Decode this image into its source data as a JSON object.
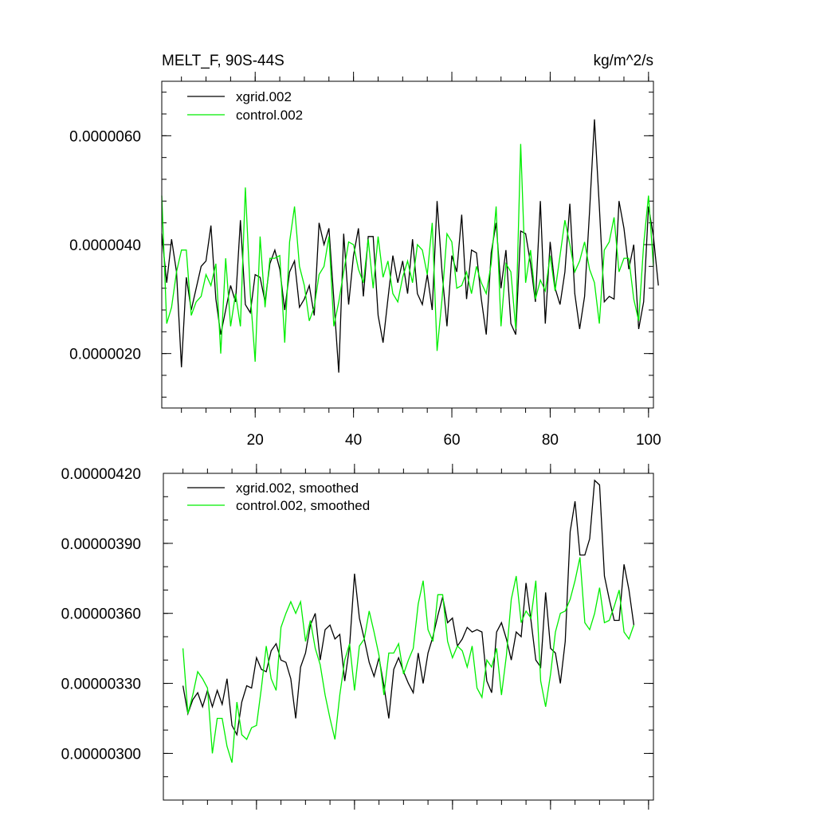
{
  "chart_data": [
    {
      "type": "line",
      "title": "MELT_F, 90S-44S",
      "units": "kg/m^2/s",
      "xlim": [
        1,
        101
      ],
      "ylim": [
        1e-06,
        7e-06
      ],
      "xticks": [
        20,
        40,
        60,
        80,
        100
      ],
      "yticks": [
        2e-06,
        4e-06,
        6e-06
      ],
      "xtick_labels": [
        "20",
        "40",
        "60",
        "80",
        "100"
      ],
      "ytick_labels": [
        "0.0000020",
        "0.0000040",
        "0.0000060"
      ],
      "legend_position": "top-left",
      "x_start": 1,
      "series": [
        {
          "name": "xgrid.002",
          "color": "#000000",
          "values": [
            4.2e-06,
            3.3e-06,
            4.1e-06,
            3.5e-06,
            1.75e-06,
            3.4e-06,
            2.8e-06,
            3.2e-06,
            3.6e-06,
            3.7e-06,
            4.35e-06,
            3e-06,
            2.35e-06,
            2.8e-06,
            3.25e-06,
            2.95e-06,
            4.45e-06,
            2.9e-06,
            2.75e-06,
            3.45e-06,
            3.4e-06,
            2.95e-06,
            3.65e-06,
            3.9e-06,
            3.55e-06,
            2.8e-06,
            3.5e-06,
            3.7e-06,
            2.85e-06,
            3e-06,
            3.25e-06,
            2.7e-06,
            4.4e-06,
            4e-06,
            4.3e-06,
            3e-06,
            1.65e-06,
            4.2e-06,
            2.9e-06,
            3.8e-06,
            4.3e-06,
            3.05e-06,
            4.15e-06,
            4.15e-06,
            2.7e-06,
            2.2e-06,
            3e-06,
            3.8e-06,
            3.3e-06,
            3.7e-06,
            3.1e-06,
            4.1e-06,
            3.1e-06,
            2.9e-06,
            3.45e-06,
            2.8e-06,
            4.8e-06,
            3.5e-06,
            2.5e-06,
            3.8e-06,
            3.5e-06,
            4.55e-06,
            3e-06,
            3.9e-06,
            3.85e-06,
            3e-06,
            2.35e-06,
            3.85e-06,
            4.4e-06,
            3.2e-06,
            3.9e-06,
            2.55e-06,
            2.35e-06,
            4.25e-06,
            4.2e-06,
            3.65e-06,
            2.95e-06,
            4.8e-06,
            2.55e-06,
            4.05e-06,
            3.2e-06,
            2.9e-06,
            3.5e-06,
            4.75e-06,
            3.1e-06,
            2.45e-06,
            3.05e-06,
            4.6e-06,
            6.3e-06,
            4.7e-06,
            2.95e-06,
            3.05e-06,
            3e-06,
            4.8e-06,
            4.3e-06,
            3.55e-06,
            4e-06,
            2.45e-06,
            2.95e-06,
            4.7e-06,
            4.15e-06,
            3.25e-06
          ]
        },
        {
          "name": "control.002",
          "color": "#00ee00",
          "values": [
            4.9e-06,
            2.55e-06,
            2.85e-06,
            3.5e-06,
            3.9e-06,
            3.9e-06,
            2.7e-06,
            2.95e-06,
            3.05e-06,
            3.45e-06,
            3.25e-06,
            3.65e-06,
            2e-06,
            3.75e-06,
            2.5e-06,
            3.1e-06,
            2.5e-06,
            5.05e-06,
            3.1e-06,
            1.85e-06,
            4.15e-06,
            2.85e-06,
            3.75e-06,
            3.75e-06,
            3.8e-06,
            2.2e-06,
            4.05e-06,
            4.7e-06,
            3.6e-06,
            3.25e-06,
            2.6e-06,
            2.85e-06,
            3.45e-06,
            3.6e-06,
            4.15e-06,
            2.5e-06,
            2.95e-06,
            3.5e-06,
            4.05e-06,
            4e-06,
            3.55e-06,
            3.3e-06,
            4.1e-06,
            3.2e-06,
            4.15e-06,
            3.4e-06,
            3.7e-06,
            3.1e-06,
            2.95e-06,
            3.4e-06,
            3.7e-06,
            3.3e-06,
            4e-06,
            3.9e-06,
            3.45e-06,
            4.4e-06,
            2.05e-06,
            3e-06,
            4.2e-06,
            4.05e-06,
            3.2e-06,
            3.25e-06,
            3.5e-06,
            3.1e-06,
            3.6e-06,
            3.3e-06,
            3.1e-06,
            3.65e-06,
            4.7e-06,
            2.5e-06,
            3.65e-06,
            3.5e-06,
            2.45e-06,
            5.85e-06,
            3.3e-06,
            3.9e-06,
            3e-06,
            3.35e-06,
            3.15e-06,
            3.8e-06,
            3.15e-06,
            3.8e-06,
            4.45e-06,
            4e-06,
            3.5e-06,
            3.7e-06,
            4.05e-06,
            3.55e-06,
            3.3e-06,
            2.55e-06,
            3.9e-06,
            4.05e-06,
            4.5e-06,
            3.5e-06,
            3.75e-06,
            3.75e-06,
            3e-06,
            2.6e-06,
            4e-06,
            4.9e-06,
            3.6e-06
          ]
        }
      ]
    },
    {
      "type": "line",
      "xlim": [
        1,
        101
      ],
      "ylim": [
        2.8e-06,
        4.2e-06
      ],
      "xticks": [
        20,
        40,
        60,
        80,
        100
      ],
      "yticks": [
        3e-06,
        3.3e-06,
        3.6e-06,
        3.9e-06,
        4.2e-06
      ],
      "ytick_labels": [
        "0.00000300",
        "0.00000330",
        "0.00000360",
        "0.00000390",
        "0.00000420"
      ],
      "legend_position": "top-left",
      "x_start": 5,
      "series": [
        {
          "name": "xgrid.002, smoothed",
          "color": "#000000",
          "values": [
            3.29e-06,
            3.17e-06,
            3.23e-06,
            3.26e-06,
            3.2e-06,
            3.27e-06,
            3.2e-06,
            3.27e-06,
            3.21e-06,
            3.32e-06,
            3.12e-06,
            3.08e-06,
            3.22e-06,
            3.29e-06,
            3.28e-06,
            3.41e-06,
            3.36e-06,
            3.35e-06,
            3.44e-06,
            3.47e-06,
            3.4e-06,
            3.39e-06,
            3.32e-06,
            3.15e-06,
            3.37e-06,
            3.43e-06,
            3.55e-06,
            3.6e-06,
            3.4e-06,
            3.53e-06,
            3.55e-06,
            3.49e-06,
            3.51e-06,
            3.31e-06,
            3.46e-06,
            3.77e-06,
            3.58e-06,
            3.49e-06,
            3.39e-06,
            3.33e-06,
            3.41e-06,
            3.29e-06,
            3.15e-06,
            3.36e-06,
            3.41e-06,
            3.35e-06,
            3.3e-06,
            3.26e-06,
            3.43e-06,
            3.3e-06,
            3.43e-06,
            3.5e-06,
            3.59e-06,
            3.67e-06,
            3.56e-06,
            3.58e-06,
            3.46e-06,
            3.49e-06,
            3.54e-06,
            3.52e-06,
            3.53e-06,
            3.52e-06,
            3.31e-06,
            3.26e-06,
            3.52e-06,
            3.56e-06,
            3.49e-06,
            3.4e-06,
            3.52e-06,
            3.5e-06,
            3.73e-06,
            3.57e-06,
            3.4e-06,
            3.37e-06,
            3.69e-06,
            3.45e-06,
            3.43e-06,
            3.3e-06,
            3.48e-06,
            3.95e-06,
            4.08e-06,
            3.85e-06,
            3.85e-06,
            3.92e-06,
            4.17e-06,
            4.15e-06,
            3.76e-06,
            3.66e-06,
            3.57e-06,
            3.57e-06,
            3.81e-06,
            3.7e-06,
            3.55e-06
          ]
        },
        {
          "name": "control.002, smoothed",
          "color": "#00ee00",
          "values": [
            3.45e-06,
            3.17e-06,
            3.25e-06,
            3.35e-06,
            3.32e-06,
            3.28e-06,
            3e-06,
            3.15e-06,
            3.15e-06,
            3.03e-06,
            2.96e-06,
            3.22e-06,
            3.08e-06,
            3.06e-06,
            3.11e-06,
            3.12e-06,
            3.28e-06,
            3.46e-06,
            3.32e-06,
            3.27e-06,
            3.54e-06,
            3.6e-06,
            3.65e-06,
            3.6e-06,
            3.65e-06,
            3.48e-06,
            3.57e-06,
            3.45e-06,
            3.38e-06,
            3.25e-06,
            3.15e-06,
            3.06e-06,
            3.25e-06,
            3.4e-06,
            3.47e-06,
            3.27e-06,
            3.46e-06,
            3.49e-06,
            3.61e-06,
            3.52e-06,
            3.42e-06,
            3.25e-06,
            3.43e-06,
            3.43e-06,
            3.47e-06,
            3.34e-06,
            3.4e-06,
            3.45e-06,
            3.64e-06,
            3.74e-06,
            3.53e-06,
            3.48e-06,
            3.68e-06,
            3.68e-06,
            3.48e-06,
            3.41e-06,
            3.46e-06,
            3.44e-06,
            3.37e-06,
            3.46e-06,
            3.28e-06,
            3.24e-06,
            3.4e-06,
            3.37e-06,
            3.45e-06,
            3.25e-06,
            3.42e-06,
            3.66e-06,
            3.76e-06,
            3.56e-06,
            3.61e-06,
            3.58e-06,
            3.74e-06,
            3.31e-06,
            3.2e-06,
            3.34e-06,
            3.52e-06,
            3.6e-06,
            3.61e-06,
            3.66e-06,
            3.74e-06,
            3.84e-06,
            3.56e-06,
            3.53e-06,
            3.6e-06,
            3.71e-06,
            3.56e-06,
            3.57e-06,
            3.63e-06,
            3.7e-06,
            3.52e-06,
            3.49e-06,
            3.55e-06
          ]
        }
      ]
    }
  ]
}
